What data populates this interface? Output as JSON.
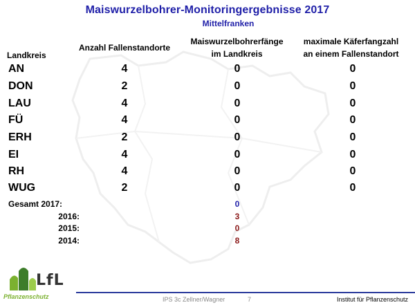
{
  "title": "Maiswurzelbohrer-Monitoringergebnisse 2017",
  "subtitle": "Mittelfranken",
  "headers": {
    "landkreis": "Landkreis",
    "anzahl": "Anzahl Fallenstandorte",
    "faenge_line1": "Maiswurzelbohrerfänge",
    "faenge_line2": "im Landkreis",
    "max_line1": "maximale Käferfangzahl",
    "max_line2": "an einem Fallenstandort"
  },
  "rows": [
    {
      "name": "AN",
      "anzahl": "4",
      "faenge": "0",
      "max": "0"
    },
    {
      "name": "DON",
      "anzahl": "2",
      "faenge": "0",
      "max": "0"
    },
    {
      "name": "LAU",
      "anzahl": "4",
      "faenge": "0",
      "max": "0"
    },
    {
      "name": "FÜ",
      "anzahl": "4",
      "faenge": "0",
      "max": "0"
    },
    {
      "name": "ERH",
      "anzahl": "2",
      "faenge": "0",
      "max": "0"
    },
    {
      "name": "EI",
      "anzahl": "4",
      "faenge": "0",
      "max": "0"
    },
    {
      "name": "RH",
      "anzahl": "4",
      "faenge": "0",
      "max": "0"
    },
    {
      "name": "WUG",
      "anzahl": "2",
      "faenge": "0",
      "max": "0"
    }
  ],
  "totals": [
    {
      "label": "Gesamt 2017:",
      "value": "0",
      "color": "#1f1fa8"
    },
    {
      "label": "2016:",
      "value": "3",
      "color": "#8b1a1a"
    },
    {
      "label": "2015:",
      "value": "0",
      "color": "#8b1a1a"
    },
    {
      "label": "2014:",
      "value": "8",
      "color": "#8b1a1a"
    }
  ],
  "footer": {
    "author": "IPS 3c Zellner/Wagner",
    "page": "7",
    "institute": "Institut für Pflanzenschutz"
  },
  "logo": {
    "text": "LfL",
    "sub": "Pflanzenschutz"
  },
  "colors": {
    "title": "#1f1fa8",
    "footer_line": "#2a3a9c",
    "logo_green": "#7bb12f",
    "logo_dark_green": "#3d7d2a"
  }
}
